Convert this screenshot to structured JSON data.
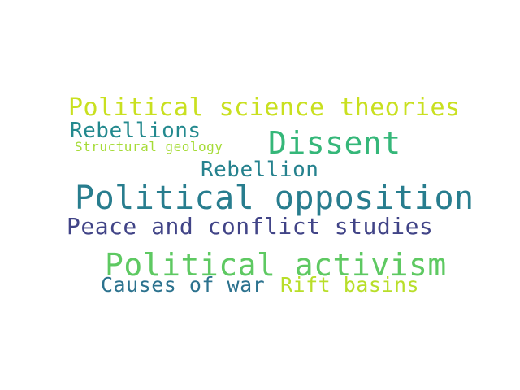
{
  "word_cloud": {
    "words": [
      {
        "id": "political-science-theories",
        "text": "Political science theories",
        "color": "#c9e020"
      },
      {
        "id": "rebellions",
        "text": "Rebellions",
        "color": "#23898e"
      },
      {
        "id": "structural-geology",
        "text": "Structural geology",
        "color": "#a5db36"
      },
      {
        "id": "dissent",
        "text": "Dissent",
        "color": "#35b779"
      },
      {
        "id": "rebellion",
        "text": "Rebellion",
        "color": "#26828e"
      },
      {
        "id": "political-opposition",
        "text": "Political opposition",
        "color": "#287d8e"
      },
      {
        "id": "peace-and-conflict-studies",
        "text": "Peace and conflict studies",
        "color": "#414487"
      },
      {
        "id": "political-activism",
        "text": "Political activism",
        "color": "#5ec962"
      },
      {
        "id": "causes-of-war",
        "text": "Causes of war",
        "color": "#2c728e"
      },
      {
        "id": "rift-basins",
        "text": "Rift basins",
        "color": "#b8de29"
      }
    ]
  }
}
